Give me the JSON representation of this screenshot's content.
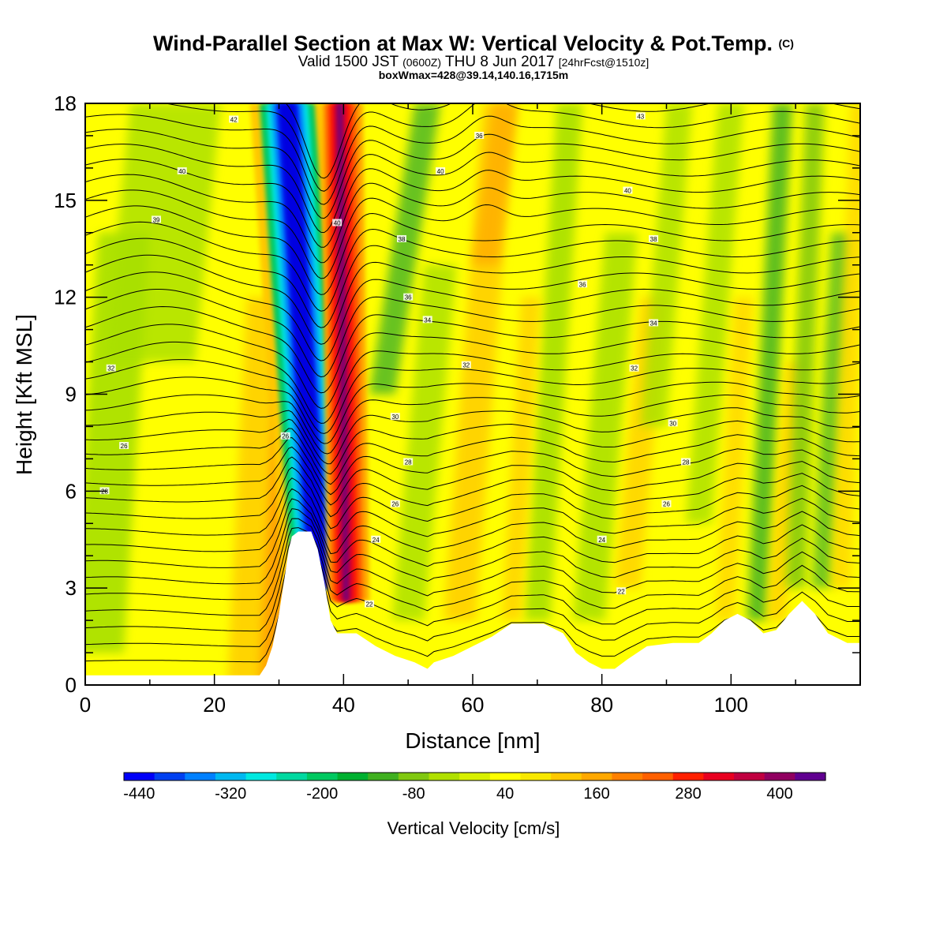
{
  "header": {
    "title": "Wind-Parallel Section at Max W: Vertical Velocity & Pot.Temp.",
    "title_mark": "(C)",
    "valid_prefix": "Valid 1500 JST",
    "valid_utc": "(0600Z)",
    "valid_date": "THU 8 Jun 2017",
    "valid_fcst": "[24hrFcst@1510z]",
    "boxinfo": "boxWmax=428@39.14,140.16,1715m"
  },
  "chart_data": {
    "type": "heatmap",
    "xlabel": "Distance [nm]",
    "ylabel": "Height [Kft MSL]",
    "xlim": [
      0,
      120
    ],
    "ylim": [
      0,
      18
    ],
    "x_ticks": [
      0,
      20,
      40,
      60,
      80,
      100
    ],
    "y_ticks": [
      0,
      3,
      6,
      9,
      12,
      15,
      18
    ],
    "colorbar": {
      "title": "Vertical Velocity [cm/s]",
      "tick_values": [
        -440,
        -320,
        -200,
        -80,
        40,
        160,
        280,
        400
      ],
      "range": [
        -460,
        460
      ],
      "colors": [
        "#0000f8",
        "#0040f0",
        "#0080ff",
        "#00b8f0",
        "#00e8e0",
        "#00d8a0",
        "#00c860",
        "#00b030",
        "#40b020",
        "#80c810",
        "#b0e000",
        "#d8f000",
        "#ffff00",
        "#f8e800",
        "#ffc800",
        "#ffa800",
        "#ff8000",
        "#ff6000",
        "#ff2000",
        "#e80020",
        "#c00040",
        "#900060",
        "#600090"
      ]
    },
    "terrain": [
      [
        0,
        0.3
      ],
      [
        27,
        0.3
      ],
      [
        28,
        0.6
      ],
      [
        29,
        1.2
      ],
      [
        30,
        2.2
      ],
      [
        31,
        3.5
      ],
      [
        31.5,
        4.2
      ],
      [
        32,
        4.6
      ],
      [
        33,
        4.75
      ],
      [
        35,
        4.75
      ],
      [
        36,
        4.2
      ],
      [
        37,
        3.2
      ],
      [
        38,
        2
      ],
      [
        39,
        1.6
      ],
      [
        42,
        1.6
      ],
      [
        45,
        1.2
      ],
      [
        48,
        0.9
      ],
      [
        51,
        0.7
      ],
      [
        53,
        0.5
      ],
      [
        54,
        0.7
      ],
      [
        57,
        0.9
      ],
      [
        60,
        1.2
      ],
      [
        63,
        1.5
      ],
      [
        66,
        1.9
      ],
      [
        71,
        1.9
      ],
      [
        74,
        1.6
      ],
      [
        76,
        1.0
      ],
      [
        78,
        0.7
      ],
      [
        80,
        0.5
      ],
      [
        82,
        0.5
      ],
      [
        84,
        0.8
      ],
      [
        87,
        1.2
      ],
      [
        91,
        1.3
      ],
      [
        95,
        1.3
      ],
      [
        97,
        1.6
      ],
      [
        99,
        2.0
      ],
      [
        101,
        2.2
      ],
      [
        103,
        2.0
      ],
      [
        105,
        1.6
      ],
      [
        107,
        1.7
      ],
      [
        109,
        2.2
      ],
      [
        111,
        2.6
      ],
      [
        113,
        2.2
      ],
      [
        115,
        1.6
      ],
      [
        118,
        1.3
      ],
      [
        120,
        1.3
      ]
    ],
    "theta_labels": [
      {
        "text": "42",
        "x": 23,
        "y": 17.5
      },
      {
        "text": "40",
        "x": 15,
        "y": 15.9
      },
      {
        "text": "39",
        "x": 11,
        "y": 14.4
      },
      {
        "text": "32",
        "x": 4,
        "y": 9.8
      },
      {
        "text": "26",
        "x": 6,
        "y": 7.4
      },
      {
        "text": "28",
        "x": 3,
        "y": 6
      },
      {
        "text": "26",
        "x": 31,
        "y": 7.7
      },
      {
        "text": "40",
        "x": 55,
        "y": 15.9
      },
      {
        "text": "43",
        "x": 86,
        "y": 17.6
      },
      {
        "text": "40",
        "x": 84,
        "y": 15.3
      },
      {
        "text": "38",
        "x": 88,
        "y": 13.8
      },
      {
        "text": "36",
        "x": 77,
        "y": 12.4
      },
      {
        "text": "34",
        "x": 88,
        "y": 11.2
      },
      {
        "text": "32",
        "x": 85,
        "y": 9.8
      },
      {
        "text": "30",
        "x": 91,
        "y": 8.1
      },
      {
        "text": "28",
        "x": 93,
        "y": 6.9
      },
      {
        "text": "26",
        "x": 90,
        "y": 5.6
      },
      {
        "text": "24",
        "x": 80,
        "y": 4.5
      },
      {
        "text": "22",
        "x": 83,
        "y": 2.9
      },
      {
        "text": "36",
        "x": 50,
        "y": 12
      },
      {
        "text": "34",
        "x": 53,
        "y": 11.3
      },
      {
        "text": "32",
        "x": 59,
        "y": 9.9
      },
      {
        "text": "30",
        "x": 48,
        "y": 8.3
      },
      {
        "text": "28",
        "x": 50,
        "y": 6.9
      },
      {
        "text": "26",
        "x": 48,
        "y": 5.6
      },
      {
        "text": "24",
        "x": 45,
        "y": 4.5
      },
      {
        "text": "22",
        "x": 44,
        "y": 2.5
      },
      {
        "text": "38",
        "x": 49,
        "y": 13.8
      },
      {
        "text": "40",
        "x": 39,
        "y": 14.3
      },
      {
        "text": "36",
        "x": 61,
        "y": 17
      }
    ]
  }
}
